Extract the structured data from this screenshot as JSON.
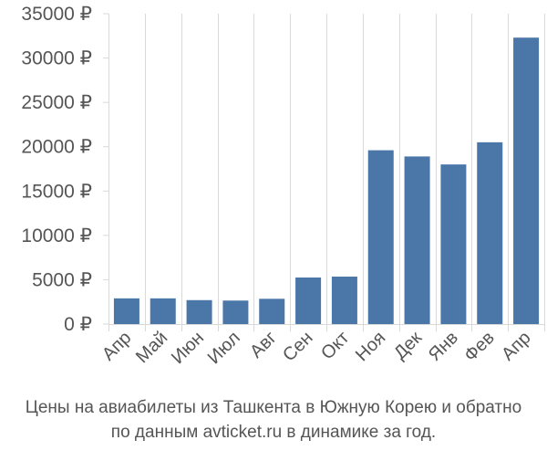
{
  "chart_data": {
    "type": "bar",
    "categories": [
      "Апр",
      "Май",
      "Июн",
      "Июл",
      "Авг",
      "Сен",
      "Окт",
      "Ноя",
      "Дек",
      "Янв",
      "Фев",
      "Апр"
    ],
    "values": [
      2900,
      2900,
      2700,
      2650,
      2850,
      5250,
      5350,
      19600,
      18900,
      18000,
      20500,
      32300
    ],
    "y_ticks": [
      "0 ₽",
      "5000 ₽",
      "10000 ₽",
      "15000 ₽",
      "20000 ₽",
      "25000 ₽",
      "30000 ₽",
      "35000 ₽"
    ],
    "y_tick_values": [
      0,
      5000,
      10000,
      15000,
      20000,
      25000,
      30000,
      35000
    ],
    "ylim": [
      0,
      35000
    ],
    "grid": "vertical",
    "title": "",
    "xlabel": "",
    "ylabel": "",
    "bar_color": "#4a76a8",
    "caption": [
      "Цены на авиабилеты из Ташкента в Южную Корею и обратно",
      "по данным avticket.ru в динамике за год."
    ]
  }
}
